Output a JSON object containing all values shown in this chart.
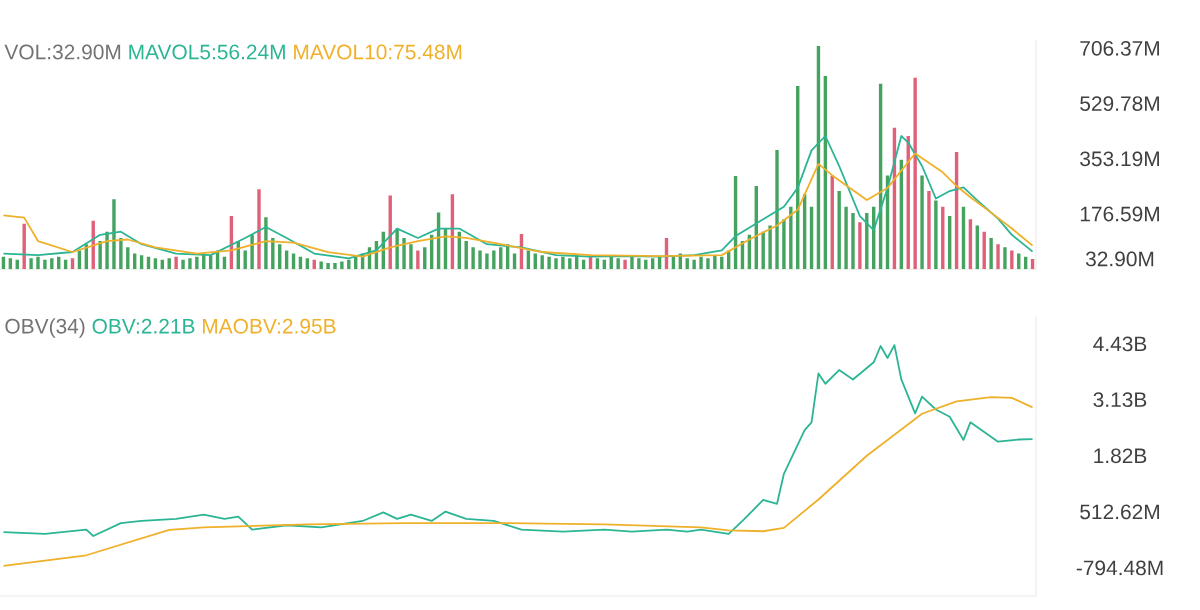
{
  "chart_data": [
    {
      "type": "bar",
      "title": "VOL:32.90M",
      "tick_labels": "y",
      "categories": [
        null,
        null,
        null,
        null,
        null,
        null,
        null,
        null,
        null,
        null,
        null,
        null,
        null,
        null,
        null,
        null,
        null,
        null,
        null,
        null,
        null,
        null,
        null,
        null,
        null,
        null,
        null,
        null,
        null,
        null,
        null,
        null,
        null,
        null,
        null,
        null,
        null,
        null,
        null,
        null,
        null,
        null,
        null,
        null,
        null,
        null,
        null,
        null,
        null,
        null,
        null,
        null,
        null,
        null,
        null,
        null,
        null,
        null,
        null,
        null,
        null,
        null,
        null,
        null,
        null,
        null,
        null,
        null,
        null,
        null,
        null,
        null,
        null,
        null,
        null,
        null,
        null,
        null,
        null,
        null,
        null,
        null,
        null,
        null,
        null,
        null,
        null,
        null,
        null,
        null,
        null,
        null,
        null,
        null,
        null,
        null,
        null,
        null,
        null,
        null,
        null,
        null,
        null,
        null,
        null,
        null,
        null,
        null,
        null,
        null,
        null,
        null,
        null,
        null,
        null,
        null,
        null,
        null,
        null,
        null,
        null,
        null,
        null,
        null,
        null,
        null,
        null,
        null,
        null,
        null,
        null,
        null,
        null,
        null,
        null,
        null,
        null,
        null,
        null,
        null,
        null,
        null,
        null,
        null,
        null,
        null,
        null,
        null,
        null,
        null
      ],
      "ylim": [
        0,
        733
      ],
      "yticks": [
        {
          "value": 706.37,
          "label": "706.37M"
        },
        {
          "value": 529.78,
          "label": "529.78M"
        },
        {
          "value": 353.19,
          "label": "353.19M"
        },
        {
          "value": 176.59,
          "label": "176.59M"
        },
        {
          "value": 32.9,
          "label": "32.90M"
        }
      ],
      "series": [
        {
          "type": "bar",
          "values": [
            40,
            35,
            30,
            145,
            35,
            40,
            30,
            35,
            40,
            30,
            35,
            60,
            80,
            155,
            90,
            120,
            224,
            100,
            70,
            50,
            45,
            40,
            35,
            30,
            35,
            40,
            30,
            35,
            40,
            50,
            45,
            60,
            40,
            170,
            90,
            60,
            110,
            256,
            166,
            100,
            80,
            60,
            50,
            40,
            35,
            30,
            25,
            20,
            20,
            25,
            30,
            40,
            50,
            70,
            90,
            120,
            236,
            130,
            100,
            80,
            60,
            70,
            110,
            181,
            130,
            240,
            120,
            90,
            70,
            60,
            50,
            60,
            70,
            80,
            50,
            113,
            60,
            50,
            45,
            40,
            35,
            40,
            35,
            45,
            30,
            40,
            35,
            30,
            40,
            35,
            30,
            40,
            35,
            30,
            35,
            40,
            100,
            40,
            50,
            35,
            30,
            40,
            35,
            45,
            40,
            60,
            298,
            90,
            110,
            266,
            120,
            140,
            381,
            160,
            200,
            586,
            240,
            200,
            714,
            618,
            300,
            250,
            200,
            180,
            150,
            180,
            200,
            593,
            300,
            452,
            350,
            426,
            612,
            300,
            250,
            220,
            200,
            170,
            375,
            200,
            160,
            140,
            120,
            100,
            80,
            70,
            60,
            50,
            40,
            32.9
          ],
          "colors": [
            "#45a35f",
            "#45a35f",
            "#45a35f",
            "#e0607a",
            "#45a35f",
            "#45a35f",
            "#45a35f",
            "#45a35f",
            "#45a35f",
            "#45a35f",
            "#e0607a",
            "#45a35f",
            "#45a35f",
            "#e0607a",
            "#45a35f",
            "#45a35f",
            "#45a35f",
            "#45a35f",
            "#45a35f",
            "#45a35f",
            "#45a35f",
            "#45a35f",
            "#45a35f",
            "#45a35f",
            "#45a35f",
            "#e0607a",
            "#45a35f",
            "#45a35f",
            "#45a35f",
            "#45a35f",
            "#45a35f",
            "#45a35f",
            "#45a35f",
            "#e0607a",
            "#45a35f",
            "#45a35f",
            "#45a35f",
            "#e0607a",
            "#45a35f",
            "#45a35f",
            "#45a35f",
            "#45a35f",
            "#45a35f",
            "#45a35f",
            "#45a35f",
            "#e0607a",
            "#45a35f",
            "#45a35f",
            "#45a35f",
            "#45a35f",
            "#45a35f",
            "#45a35f",
            "#45a35f",
            "#45a35f",
            "#45a35f",
            "#45a35f",
            "#e0607a",
            "#45a35f",
            "#45a35f",
            "#45a35f",
            "#e0607a",
            "#45a35f",
            "#45a35f",
            "#45a35f",
            "#45a35f",
            "#e0607a",
            "#45a35f",
            "#45a35f",
            "#45a35f",
            "#45a35f",
            "#45a35f",
            "#45a35f",
            "#45a35f",
            "#45a35f",
            "#45a35f",
            "#e0607a",
            "#45a35f",
            "#45a35f",
            "#45a35f",
            "#45a35f",
            "#45a35f",
            "#45a35f",
            "#45a35f",
            "#45a35f",
            "#45a35f",
            "#e0607a",
            "#45a35f",
            "#45a35f",
            "#45a35f",
            "#45a35f",
            "#e0607a",
            "#45a35f",
            "#45a35f",
            "#45a35f",
            "#45a35f",
            "#45a35f",
            "#e0607a",
            "#45a35f",
            "#45a35f",
            "#45a35f",
            "#45a35f",
            "#45a35f",
            "#45a35f",
            "#45a35f",
            "#45a35f",
            "#45a35f",
            "#45a35f",
            "#45a35f",
            "#45a35f",
            "#45a35f",
            "#45a35f",
            "#45a35f",
            "#45a35f",
            "#45a35f",
            "#45a35f",
            "#45a35f",
            "#45a35f",
            "#45a35f",
            "#45a35f",
            "#45a35f",
            "#e0607a",
            "#45a35f",
            "#45a35f",
            "#45a35f",
            "#e0607a",
            "#45a35f",
            "#45a35f",
            "#45a35f",
            "#45a35f",
            "#e0607a",
            "#45a35f",
            "#e0607a",
            "#e0607a",
            "#45a35f",
            "#e0607a",
            "#45a35f",
            "#e0607a",
            "#45a35f",
            "#e0607a",
            "#45a35f",
            "#e0607a",
            "#45a35f",
            "#e0607a",
            "#45a35f",
            "#e0607a",
            "#45a35f",
            "#e0607a",
            "#45a35f",
            "#45a35f",
            "#e0607a"
          ]
        },
        {
          "name": "MAVOL5:56.24M",
          "type": "line",
          "color": "#2bb594",
          "values": [
            50,
            null,
            null,
            null,
            null,
            45,
            null,
            null,
            null,
            null,
            55,
            null,
            null,
            null,
            110,
            null,
            null,
            120,
            null,
            null,
            80,
            null,
            null,
            null,
            null,
            50,
            null,
            null,
            null,
            null,
            45,
            null,
            null,
            null,
            null,
            100,
            null,
            null,
            135,
            null,
            null,
            100,
            null,
            null,
            null,
            50,
            null,
            null,
            null,
            null,
            35,
            null,
            null,
            null,
            60,
            null,
            null,
            130,
            null,
            null,
            100,
            null,
            null,
            130,
            null,
            null,
            130,
            null,
            null,
            null,
            80,
            null,
            null,
            null,
            null,
            70,
            null,
            null,
            null,
            null,
            45,
            null,
            null,
            null,
            null,
            40,
            null,
            null,
            null,
            null,
            42,
            null,
            null,
            null,
            null,
            40,
            null,
            null,
            null,
            null,
            45,
            null,
            null,
            null,
            60,
            null,
            106,
            null,
            null,
            null,
            160,
            null,
            null,
            200,
            null,
            260,
            null,
            380,
            null,
            426,
            null,
            330,
            null,
            null,
            170,
            null,
            125,
            null,
            260,
            null,
            426,
            405,
            null,
            330,
            null,
            226,
            null,
            250,
            null,
            262,
            null,
            220,
            null,
            null,
            162,
            null,
            110,
            null,
            null,
            56.24
          ]
        },
        {
          "name": "MAVOL10:75.48M",
          "type": "line",
          "color": "#efb02a",
          "values": [
            172,
            null,
            null,
            165,
            null,
            90,
            null,
            null,
            null,
            null,
            55,
            null,
            null,
            null,
            null,
            90,
            null,
            null,
            95,
            null,
            null,
            null,
            70,
            null,
            null,
            null,
            null,
            null,
            50,
            null,
            null,
            null,
            null,
            60,
            null,
            null,
            null,
            null,
            90,
            null,
            null,
            null,
            85,
            null,
            null,
            null,
            null,
            55,
            null,
            null,
            null,
            null,
            40,
            null,
            null,
            null,
            70,
            null,
            null,
            null,
            90,
            null,
            null,
            null,
            105,
            null,
            null,
            100,
            null,
            null,
            null,
            null,
            80,
            null,
            null,
            null,
            null,
            null,
            55,
            null,
            null,
            null,
            null,
            null,
            null,
            45,
            null,
            null,
            null,
            null,
            null,
            null,
            null,
            null,
            null,
            42,
            null,
            null,
            null,
            null,
            null,
            null,
            null,
            null,
            45,
            null,
            null,
            null,
            95,
            null,
            null,
            null,
            140,
            null,
            null,
            190,
            null,
            null,
            337,
            null,
            300,
            null,
            null,
            null,
            null,
            221,
            null,
            null,
            260,
            null,
            null,
            null,
            370,
            null,
            null,
            null,
            310,
            null,
            266,
            null,
            230,
            null,
            null,
            181,
            null,
            null,
            130,
            null,
            null,
            75.48
          ]
        }
      ]
    },
    {
      "type": "line",
      "title": "OBV(34)",
      "tick_labels": "y",
      "categories": [
        null,
        null,
        null,
        null,
        null,
        null,
        null,
        null,
        null,
        null,
        null,
        null,
        null,
        null,
        null,
        null,
        null,
        null,
        null,
        null,
        null,
        null,
        null,
        null,
        null,
        null,
        null,
        null,
        null,
        null,
        null,
        null,
        null,
        null,
        null,
        null,
        null,
        null,
        null,
        null,
        null,
        null,
        null,
        null,
        null,
        null,
        null,
        null,
        null,
        null,
        null,
        null,
        null,
        null,
        null,
        null,
        null,
        null,
        null,
        null,
        null,
        null,
        null,
        null,
        null,
        null,
        null,
        null,
        null,
        null,
        null,
        null,
        null,
        null,
        null,
        null,
        null,
        null,
        null,
        null,
        null,
        null,
        null,
        null,
        null,
        null,
        null,
        null,
        null,
        null,
        null,
        null,
        null,
        null,
        null,
        null,
        null,
        null,
        null,
        null,
        null,
        null,
        null,
        null,
        null,
        null,
        null,
        null,
        null,
        null,
        null,
        null,
        null,
        null,
        null,
        null,
        null,
        null,
        null,
        null,
        null,
        null,
        null,
        null,
        null,
        null,
        null,
        null,
        null,
        null,
        null,
        null,
        null,
        null,
        null,
        null,
        null,
        null,
        null,
        null,
        null,
        null,
        null,
        null,
        null,
        null,
        null,
        null,
        null,
        null
      ],
      "ylim": [
        -1450000000,
        5080000000
      ],
      "yticks": [
        {
          "value": 4430000000,
          "label": "4.43B"
        },
        {
          "value": 3130000000,
          "label": "3.13B"
        },
        {
          "value": 1820000000,
          "label": "1.82B"
        },
        {
          "value": 512620000,
          "label": "512.62M"
        },
        {
          "value": -794480000,
          "label": "-794.48M"
        }
      ],
      "series": [
        {
          "name": "OBV:2.21B",
          "color": "#2bb594",
          "values": [
            40000000,
            null,
            null,
            null,
            null,
            null,
            0,
            null,
            null,
            null,
            null,
            null,
            100000000,
            -50000000,
            null,
            null,
            null,
            250000000,
            null,
            null,
            300000000,
            null,
            null,
            null,
            null,
            350000000,
            null,
            null,
            null,
            450000000,
            null,
            null,
            350000000,
            null,
            400000000,
            null,
            100000000,
            null,
            null,
            null,
            null,
            200000000,
            null,
            null,
            null,
            null,
            150000000,
            null,
            null,
            null,
            null,
            null,
            300000000,
            null,
            null,
            500000000,
            null,
            350000000,
            null,
            450000000,
            null,
            null,
            300000000,
            null,
            520000000,
            null,
            null,
            350000000,
            null,
            null,
            null,
            300000000,
            null,
            null,
            null,
            100000000,
            null,
            null,
            null,
            null,
            null,
            50000000,
            null,
            null,
            null,
            null,
            null,
            100000000,
            null,
            null,
            null,
            50000000,
            null,
            null,
            null,
            null,
            100000000,
            null,
            null,
            50000000,
            null,
            100000000,
            null,
            null,
            null,
            0,
            null,
            300000000,
            null,
            null,
            790000000,
            null,
            700000000,
            1400000000,
            null,
            null,
            2420000000,
            2600000000,
            3740000000,
            3500000000,
            null,
            3820000000,
            null,
            3600000000,
            null,
            null,
            4000000000,
            4380000000,
            4100000000,
            4400000000,
            3600000000,
            null,
            2810000000,
            3200000000,
            null,
            2900000000,
            null,
            2730000000,
            null,
            2190000000,
            2600000000,
            null,
            null,
            null,
            2150000000,
            null,
            null,
            2200000000,
            null,
            2210000000
          ]
        },
        {
          "name": "MAOBV:2.95B",
          "color": "#efb02a",
          "values": [
            -750000000,
            null,
            null,
            null,
            null,
            null,
            null,
            null,
            null,
            null,
            null,
            null,
            -500000000,
            null,
            null,
            null,
            null,
            null,
            null,
            null,
            null,
            null,
            null,
            null,
            90000000,
            null,
            null,
            null,
            null,
            150000000,
            null,
            null,
            null,
            null,
            null,
            null,
            null,
            null,
            null,
            null,
            null,
            null,
            null,
            null,
            220000000,
            null,
            null,
            null,
            null,
            null,
            null,
            null,
            null,
            null,
            null,
            null,
            null,
            null,
            250000000,
            null,
            null,
            null,
            null,
            null,
            null,
            null,
            null,
            null,
            null,
            null,
            null,
            null,
            null,
            250000000,
            null,
            null,
            null,
            null,
            null,
            null,
            null,
            null,
            null,
            null,
            null,
            null,
            null,
            220000000,
            null,
            null,
            null,
            null,
            null,
            null,
            null,
            null,
            null,
            null,
            null,
            null,
            null,
            150000000,
            null,
            null,
            null,
            80000000,
            null,
            null,
            null,
            null,
            60000000,
            null,
            null,
            140000000,
            null,
            null,
            null,
            null,
            800000000,
            null,
            null,
            null,
            null,
            null,
            null,
            1820000000,
            null,
            null,
            null,
            null,
            null,
            null,
            null,
            2800000000,
            null,
            null,
            null,
            null,
            3090000000,
            null,
            null,
            null,
            null,
            3190000000,
            null,
            null,
            3170000000,
            null,
            null,
            2950000000
          ]
        }
      ]
    }
  ]
}
